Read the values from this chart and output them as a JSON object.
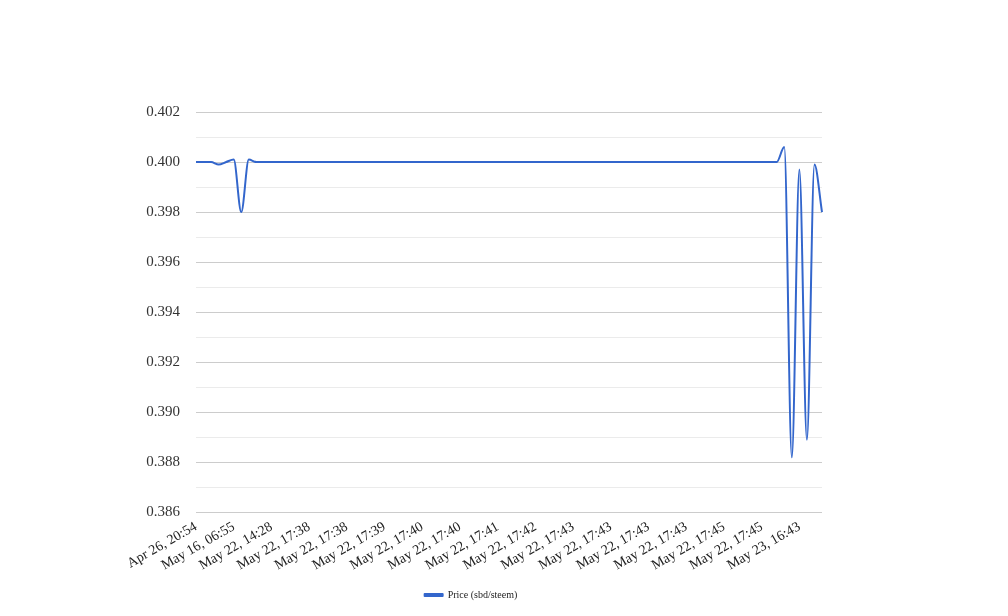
{
  "chart_data": {
    "type": "line",
    "categories": [
      "Apr 26, 20:54",
      null,
      null,
      null,
      null,
      "May 16, 06:55",
      null,
      null,
      null,
      null,
      "May 22, 14:28",
      null,
      null,
      null,
      null,
      "May 22, 17:38",
      null,
      null,
      null,
      null,
      "May 22, 17:38",
      null,
      null,
      null,
      null,
      "May 22, 17:39",
      null,
      null,
      null,
      null,
      "May 22, 17:40",
      null,
      null,
      null,
      null,
      "May 22, 17:40",
      null,
      null,
      null,
      null,
      "May 22, 17:41",
      null,
      null,
      null,
      null,
      "May 22, 17:42",
      null,
      null,
      null,
      null,
      "May 22, 17:43",
      null,
      null,
      null,
      null,
      "May 22, 17:43",
      null,
      null,
      null,
      null,
      "May 22, 17:43",
      null,
      null,
      null,
      null,
      "May 22, 17:43",
      null,
      null,
      null,
      null,
      "May 22, 17:45",
      null,
      null,
      null,
      null,
      "May 22, 17:45",
      null,
      null,
      null,
      null,
      "May 23, 16:43",
      null,
      null,
      null
    ],
    "series": [
      {
        "name": "Price (sbd/steem)",
        "color": "#3366cc",
        "values": [
          0.4,
          0.4,
          0.4,
          0.3999,
          0.4,
          0.4001,
          0.398,
          0.4001,
          0.4,
          0.4,
          0.4,
          0.4,
          0.4,
          0.4,
          0.4,
          0.4,
          0.4,
          0.4,
          0.4,
          0.4,
          0.4,
          0.4,
          0.4,
          0.4,
          0.4,
          0.4,
          0.4,
          0.4,
          0.4,
          0.4,
          0.4,
          0.4,
          0.4,
          0.4,
          0.4,
          0.4,
          0.4,
          0.4,
          0.4,
          0.4,
          0.4,
          0.4,
          0.4,
          0.4,
          0.4,
          0.4,
          0.4,
          0.4,
          0.4,
          0.4,
          0.4,
          0.4,
          0.4,
          0.4,
          0.4,
          0.4,
          0.4,
          0.4,
          0.4,
          0.4,
          0.4,
          0.4,
          0.4,
          0.4,
          0.4,
          0.4,
          0.4,
          0.4,
          0.4,
          0.4,
          0.4,
          0.4,
          0.4,
          0.4,
          0.4,
          0.4,
          0.4,
          0.4,
          0.4006,
          0.3882,
          0.3997,
          0.3889,
          0.3999,
          0.398
        ]
      }
    ],
    "ylim": [
      0.386,
      0.402
    ],
    "yticks": [
      0.386,
      {
        "value": 0.387,
        "label": null
      },
      0.388,
      {
        "value": 0.389,
        "label": null
      },
      {
        "value": 0.39,
        "label": "0.390"
      },
      {
        "value": 0.391,
        "label": null
      },
      0.392,
      {
        "value": 0.393,
        "label": null
      },
      0.394,
      {
        "value": 0.395,
        "label": null
      },
      0.396,
      {
        "value": 0.397,
        "label": null
      },
      0.398,
      {
        "value": 0.399,
        "label": null
      },
      {
        "value": 0.4,
        "label": "0.400"
      },
      {
        "value": 0.401,
        "label": null
      },
      0.402
    ],
    "grid": "y",
    "legend": "bottom",
    "marker": "none",
    "line_style": "solid"
  }
}
